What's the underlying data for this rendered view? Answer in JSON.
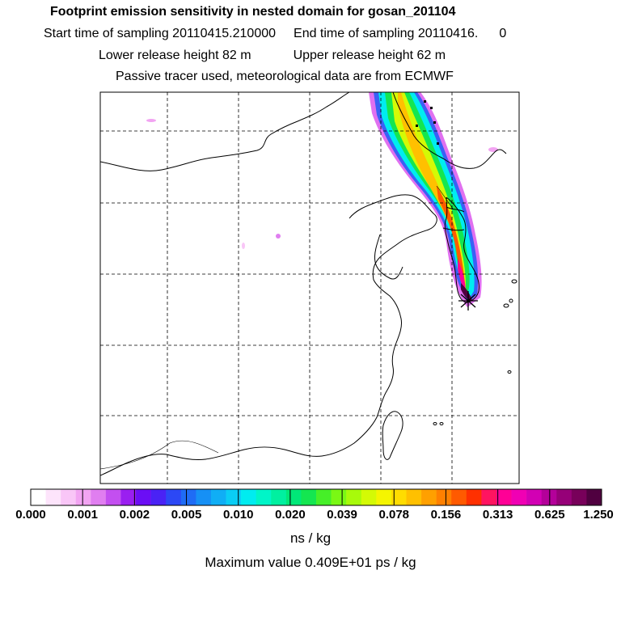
{
  "header": {
    "title": "Footprint emission sensitivity in nested domain for gosan_201104",
    "start_label": "Start time of sampling 20110415.210000",
    "end_label": "End time of sampling 20110416.",
    "end_suffix": "0",
    "lower_release": "Lower release height   82 m",
    "upper_release": "Upper release height   62 m",
    "tracer_note": "Passive tracer used, meteorological data are from ECMWF"
  },
  "colorbar": {
    "labels": [
      "0.000",
      "0.001",
      "0.002",
      "0.005",
      "0.010",
      "0.020",
      "0.039",
      "0.078",
      "0.156",
      "0.313",
      "0.625",
      "1.250"
    ],
    "colors": [
      "#ffffff",
      "#fde4fb",
      "#f9c6f7",
      "#f2a4f2",
      "#e07ef0",
      "#c34ff0",
      "#9a1ff0",
      "#6b0ef5",
      "#4a22f5",
      "#2c48f5",
      "#1f6cf5",
      "#1690f5",
      "#10aef5",
      "#0acdf5",
      "#00ecf0",
      "#00f5c8",
      "#00f0a0",
      "#00e878",
      "#14e650",
      "#46ef28",
      "#7af814",
      "#a8fa0a",
      "#d4fa05",
      "#f5f500",
      "#ffdc00",
      "#ffc000",
      "#ffa000",
      "#ff8000",
      "#ff5a00",
      "#ff3000",
      "#ff1460",
      "#ff0096",
      "#f000b4",
      "#d200b4",
      "#b4009a",
      "#960078",
      "#78005a",
      "#500040"
    ],
    "units": "ns / kg",
    "max_value": "Maximum value  0.409E+01 ps / kg"
  }
}
